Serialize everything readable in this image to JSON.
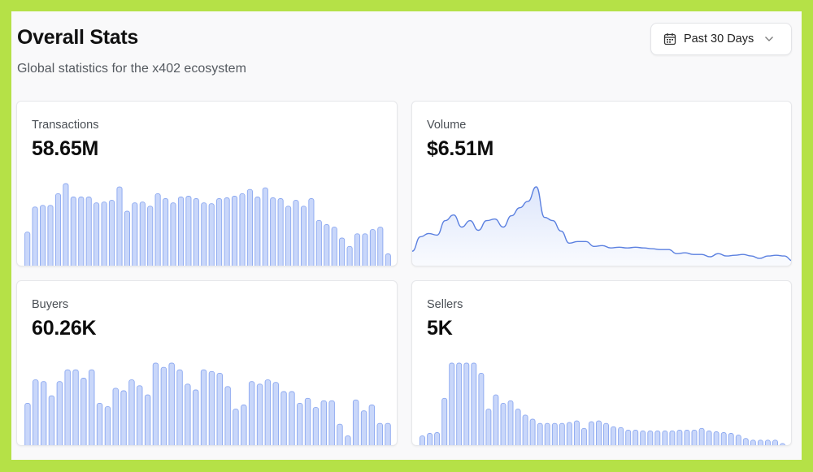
{
  "header": {
    "title": "Overall Stats",
    "subtitle": "Global statistics for the x402 ecosystem",
    "range_label": "Past 30 Days"
  },
  "colors": {
    "bar_fill": "#c9d7fa",
    "bar_stroke": "#8aa7f0",
    "line": "#5b80e0",
    "area": "#dde6fb"
  },
  "cards": [
    {
      "label": "Transactions",
      "value": "58.65M",
      "chart_data": {
        "type": "bar",
        "values": [
          42,
          72,
          74,
          74,
          88,
          100,
          84,
          84,
          84,
          77,
          78,
          80,
          96,
          67,
          77,
          78,
          73,
          88,
          82,
          77,
          84,
          85,
          82,
          77,
          76,
          82,
          83,
          85,
          88,
          93,
          84,
          95,
          83,
          82,
          73,
          80,
          73,
          82,
          56,
          51,
          48,
          35,
          25,
          40,
          40,
          45,
          48,
          16
        ]
      }
    },
    {
      "label": "Volume",
      "value": "$6.51M",
      "chart_data": {
        "type": "area",
        "values": [
          20,
          38,
          42,
          40,
          58,
          65,
          50,
          58,
          46,
          58,
          60,
          50,
          64,
          74,
          82,
          100,
          62,
          58,
          45,
          30,
          32,
          32,
          26,
          27,
          24,
          25,
          24,
          25,
          24,
          23,
          22,
          22,
          17,
          18,
          16,
          16,
          13,
          17,
          14,
          15,
          16,
          14,
          11,
          14,
          15,
          14,
          8
        ]
      }
    },
    {
      "label": "Buyers",
      "value": "60.26K",
      "chart_data": {
        "type": "bar",
        "values": [
          52,
          80,
          78,
          61,
          78,
          92,
          92,
          82,
          92,
          52,
          48,
          70,
          67,
          80,
          73,
          62,
          100,
          95,
          100,
          92,
          75,
          68,
          92,
          90,
          88,
          72,
          45,
          50,
          78,
          75,
          80,
          77,
          66,
          66,
          52,
          58,
          47,
          55,
          55,
          27,
          13,
          56,
          43,
          50,
          28,
          28
        ]
      }
    },
    {
      "label": "Sellers",
      "value": "5K",
      "chart_data": {
        "type": "bar",
        "values": [
          13,
          16,
          17,
          58,
          100,
          100,
          100,
          100,
          88,
          45,
          62,
          52,
          55,
          45,
          38,
          33,
          28,
          28,
          28,
          28,
          29,
          31,
          22,
          30,
          31,
          28,
          24,
          23,
          20,
          20,
          19,
          19,
          19,
          19,
          19,
          20,
          20,
          20,
          22,
          19,
          18,
          17,
          16,
          14,
          10,
          8,
          8,
          8,
          8,
          4
        ]
      }
    }
  ]
}
